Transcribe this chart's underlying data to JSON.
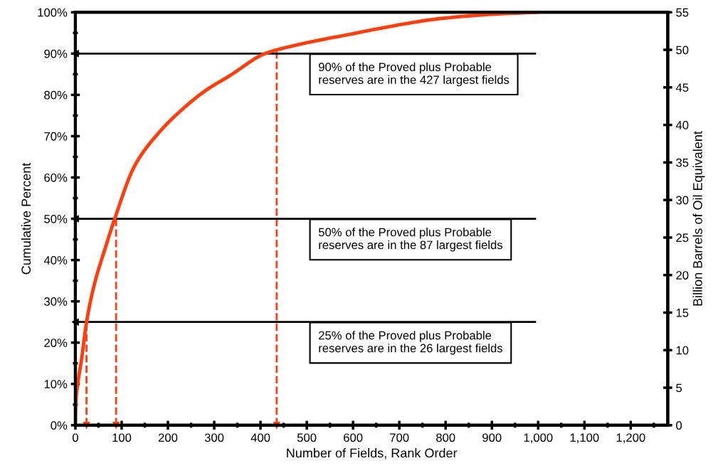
{
  "chart_data": {
    "type": "line",
    "x": [
      0,
      1,
      5,
      13,
      24,
      41,
      64,
      85,
      128,
      180,
      231,
      282,
      333,
      410,
      487,
      543,
      590,
      667,
      790,
      913,
      1000
    ],
    "series": [
      {
        "color": "#ff3d0d",
        "values": [
          0,
          5.4,
          10,
          15.7,
          24.9,
          34.1,
          42.7,
          50,
          62.8,
          70.8,
          76.5,
          81.1,
          84.6,
          90,
          92.3,
          93.6,
          94.6,
          96.3,
          98.5,
          99.6,
          100
        ]
      }
    ],
    "marker": "none",
    "line_style": "solid",
    "grid": false,
    "legend": false,
    "ref_lines": [
      {
        "axis": "x",
        "value": 435,
        "color": "#ff3d0d",
        "line_style": "dashed"
      },
      {
        "axis": "x",
        "value": 88,
        "color": "#ff3d0d",
        "line_style": "dashed"
      },
      {
        "axis": "x",
        "value": 24,
        "color": "#ff3d0d",
        "line_style": "dashed"
      },
      {
        "axis": "y",
        "value": 90,
        "color": "#000000",
        "line_style": "solid",
        "label": "90% of the Proved plus Probable\nreserves are in the 427 largest fields"
      },
      {
        "axis": "y",
        "value": 50,
        "color": "#000000",
        "line_style": "solid",
        "label": "50% of the Proved plus Probable\nreserves are in the 87 largest fields"
      },
      {
        "axis": "y",
        "value": 25,
        "color": "#000000",
        "line_style": "solid",
        "label": "25% of the Proved plus Probable\nreserves are in the 26 largest fields"
      }
    ],
    "xlabel": "Number of Fields, Rank Order",
    "ylabel": "Cumulative Percent",
    "y2label": "Billion Barrels of Oil Equivalent",
    "xlim": [
      0,
      1280
    ],
    "xticks": [
      0,
      {
        "value": 50,
        "label": null
      },
      100,
      {
        "value": 150,
        "label": null
      },
      200,
      {
        "value": 250,
        "label": null
      },
      300,
      {
        "value": 350,
        "label": null
      },
      400,
      {
        "value": 450,
        "label": null
      },
      500,
      {
        "value": 550,
        "label": null
      },
      600,
      {
        "value": 650,
        "label": null
      },
      700,
      {
        "value": 750,
        "label": null
      },
      800,
      {
        "value": 850,
        "label": null
      },
      900,
      {
        "value": 950,
        "label": null
      },
      {
        "value": 1000,
        "label": "1,000"
      },
      {
        "value": 1050,
        "label": null
      },
      {
        "value": 1100,
        "label": "1,100"
      },
      {
        "value": 1150,
        "label": null
      },
      {
        "value": 1200,
        "label": "1,200"
      },
      {
        "value": 1250,
        "label": null
      }
    ],
    "ylim": [
      0,
      100
    ],
    "yticks": [
      {
        "value": 0,
        "label": "0%"
      },
      {
        "value": 5,
        "label": null
      },
      {
        "value": 10,
        "label": "10%"
      },
      {
        "value": 15,
        "label": null
      },
      {
        "value": 20,
        "label": "20%"
      },
      {
        "value": 25,
        "label": null
      },
      {
        "value": 30,
        "label": "30%"
      },
      {
        "value": 35,
        "label": null
      },
      {
        "value": 40,
        "label": "40%"
      },
      {
        "value": 45,
        "label": null
      },
      {
        "value": 50,
        "label": "50%"
      },
      {
        "value": 55,
        "label": null
      },
      {
        "value": 60,
        "label": "60%"
      },
      {
        "value": 65,
        "label": null
      },
      {
        "value": 70,
        "label": "70%"
      },
      {
        "value": 75,
        "label": null
      },
      {
        "value": 80,
        "label": "80%"
      },
      {
        "value": 85,
        "label": null
      },
      {
        "value": 90,
        "label": "90%"
      },
      {
        "value": 95,
        "label": null
      },
      {
        "value": 100,
        "label": "100%"
      }
    ],
    "y2lim": [
      0,
      55
    ],
    "y2ticks": [
      0,
      5,
      10,
      15,
      20,
      25,
      30,
      35,
      40,
      45,
      50,
      55
    ]
  }
}
